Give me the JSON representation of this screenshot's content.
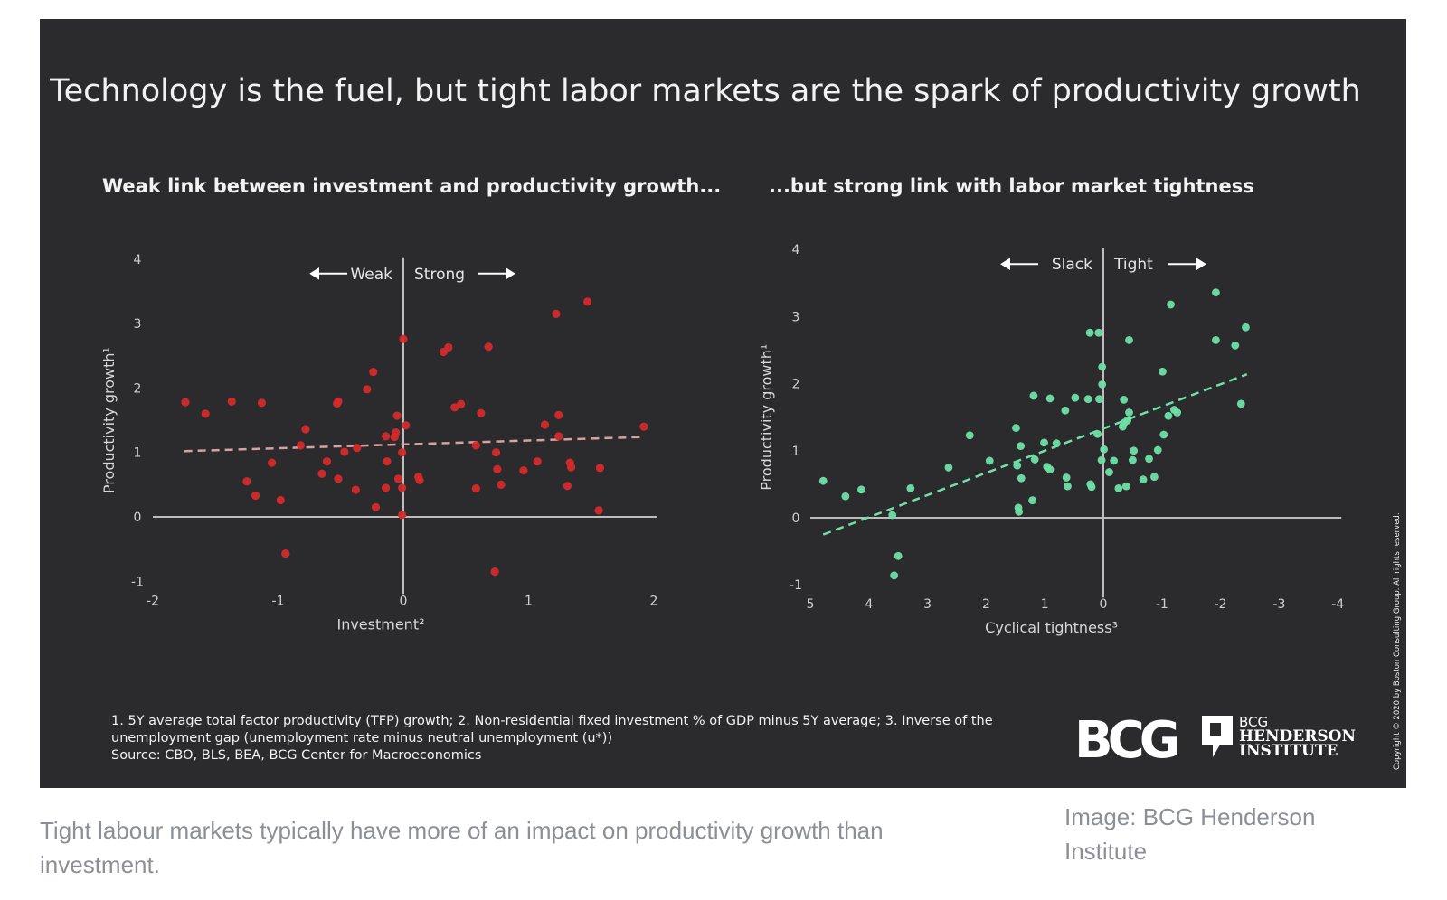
{
  "title": "Technology is the fuel, but tight labor markets are the spark of productivity growth",
  "footnotes": [
    "1. 5Y average total factor productivity (TFP) growth; 2. Non-residential fixed investment % of GDP minus 5Y average; 3. Inverse of the",
    "unemployment gap (unemployment rate minus neutral unemployment (u*))",
    "Source: CBO, BLS, BEA, BCG Center for Macroeconomics"
  ],
  "logos": {
    "bcg": "BCG",
    "henderson": [
      "BCG",
      "HENDERSON",
      "INSTITUTE"
    ]
  },
  "copyright": "Copyright © 2020 by Boston Consulting Group. All rights reserved.",
  "caption": "Tight labour markets typically have more of an impact on productivity growth than investment.",
  "credit": "Image: BCG Henderson Institute",
  "colors": {
    "background": "#2b2a2c",
    "left_points": "#d42a2c",
    "right_points": "#6fe0a6",
    "axis": "#bdbdbd",
    "caption": "#8a8f98"
  },
  "chart_data": [
    {
      "type": "scatter",
      "title": "Weak link between investment and productivity growth...",
      "xlabel": "Investment²",
      "ylabel": "Productivity growth¹",
      "xlim": [
        -2,
        2
      ],
      "ylim": [
        -1,
        4
      ],
      "xticks": [
        "-2",
        "-1",
        "0",
        "1",
        "2"
      ],
      "yticks": [
        "-1",
        "0",
        "1",
        "2",
        "3",
        "4"
      ],
      "annotation_left": "Weak",
      "annotation_right": "Strong",
      "grid": false,
      "trendline": [
        [
          -1.75,
          1.02
        ],
        [
          1.92,
          1.24
        ]
      ],
      "points": [
        [
          -1.74,
          1.78
        ],
        [
          -1.58,
          1.6
        ],
        [
          -1.37,
          1.79
        ],
        [
          -1.13,
          1.77
        ],
        [
          -0.52,
          1.79
        ],
        [
          -0.53,
          1.76
        ],
        [
          -0.29,
          1.98
        ],
        [
          -0.24,
          2.25
        ],
        [
          0,
          2.76
        ],
        [
          0.32,
          2.56
        ],
        [
          0.36,
          2.63
        ],
        [
          0.68,
          2.64
        ],
        [
          1.22,
          3.15
        ],
        [
          1.47,
          3.34
        ],
        [
          0.41,
          1.7
        ],
        [
          0.46,
          1.75
        ],
        [
          0.62,
          1.61
        ],
        [
          1.24,
          1.58
        ],
        [
          1.13,
          1.43
        ],
        [
          1.92,
          1.4
        ],
        [
          1.24,
          1.25
        ],
        [
          -0.05,
          1.57
        ],
        [
          0.02,
          1.42
        ],
        [
          -0.06,
          1.31
        ],
        [
          -0.14,
          1.25
        ],
        [
          -0.07,
          1.24
        ],
        [
          -0.78,
          1.36
        ],
        [
          -0.82,
          1.11
        ],
        [
          -0.47,
          1.01
        ],
        [
          -0.37,
          1.07
        ],
        [
          -0.01,
          1.0
        ],
        [
          0.58,
          1.11
        ],
        [
          0.74,
          1.0
        ],
        [
          -1.05,
          0.84
        ],
        [
          -0.61,
          0.86
        ],
        [
          -0.13,
          0.86
        ],
        [
          0.75,
          0.74
        ],
        [
          0.96,
          0.72
        ],
        [
          1.07,
          0.86
        ],
        [
          1.33,
          0.84
        ],
        [
          1.34,
          0.77
        ],
        [
          1.57,
          0.76
        ],
        [
          -1.25,
          0.55
        ],
        [
          -0.65,
          0.67
        ],
        [
          -0.52,
          0.59
        ],
        [
          -1.18,
          0.33
        ],
        [
          -0.98,
          0.26
        ],
        [
          -0.38,
          0.42
        ],
        [
          -0.14,
          0.45
        ],
        [
          -0.04,
          0.59
        ],
        [
          -0.01,
          0.45
        ],
        [
          0.12,
          0.62
        ],
        [
          0.13,
          0.57
        ],
        [
          0.58,
          0.44
        ],
        [
          0.78,
          0.5
        ],
        [
          1.31,
          0.48
        ],
        [
          -0.22,
          0.15
        ],
        [
          -0.01,
          0.03
        ],
        [
          1.56,
          0.1
        ],
        [
          -0.94,
          -0.57
        ],
        [
          0.73,
          -0.85
        ]
      ]
    },
    {
      "type": "scatter",
      "title": "...but strong link with labor market tightness",
      "xlabel": "Cyclical tightness³",
      "ylabel": "Productivity growth¹",
      "xlim": [
        5,
        -4
      ],
      "ylim": [
        -1,
        4
      ],
      "xticks": [
        "5",
        "4",
        "3",
        "2",
        "1",
        "0",
        "-1",
        "-2",
        "-3",
        "-4"
      ],
      "yticks": [
        "-1",
        "0",
        "1",
        "2",
        "3",
        "4"
      ],
      "annotation_left": "Slack",
      "annotation_right": "Tight",
      "grid": false,
      "trendline": [
        [
          4.78,
          -0.25
        ],
        [
          -2.45,
          2.14
        ]
      ],
      "points": [
        [
          4.78,
          0.55
        ],
        [
          4.4,
          0.32
        ],
        [
          4.13,
          0.42
        ],
        [
          3.29,
          0.44
        ],
        [
          3.6,
          0.04
        ],
        [
          3.5,
          -0.57
        ],
        [
          3.57,
          -0.86
        ],
        [
          2.64,
          0.75
        ],
        [
          2.28,
          1.23
        ],
        [
          1.94,
          0.85
        ],
        [
          1.49,
          1.34
        ],
        [
          1.41,
          1.07
        ],
        [
          1.47,
          0.78
        ],
        [
          1.4,
          0.59
        ],
        [
          1.45,
          0.15
        ],
        [
          1.44,
          0.09
        ],
        [
          1.21,
          0.26
        ],
        [
          1.19,
          1.82
        ],
        [
          0.91,
          1.78
        ],
        [
          1.17,
          0.87
        ],
        [
          1.01,
          1.12
        ],
        [
          0.8,
          1.11
        ],
        [
          0.96,
          0.76
        ],
        [
          0.91,
          0.72
        ],
        [
          0.65,
          1.6
        ],
        [
          0.63,
          0.6
        ],
        [
          0.61,
          0.47
        ],
        [
          0.48,
          1.79
        ],
        [
          0.26,
          1.77
        ],
        [
          0.23,
          2.76
        ],
        [
          0.08,
          2.76
        ],
        [
          0.07,
          1.77
        ],
        [
          0.1,
          1.25
        ],
        [
          0.22,
          0.5
        ],
        [
          0.2,
          0.46
        ],
        [
          0.02,
          2.25
        ],
        [
          0.02,
          1.99
        ],
        [
          -0.01,
          1.02
        ],
        [
          0.03,
          0.86
        ],
        [
          -0.1,
          0.68
        ],
        [
          -0.18,
          0.85
        ],
        [
          -0.26,
          0.44
        ],
        [
          -0.39,
          0.47
        ],
        [
          -0.35,
          1.76
        ],
        [
          -0.44,
          2.65
        ],
        [
          -0.36,
          1.42
        ],
        [
          -0.33,
          1.36
        ],
        [
          -0.41,
          1.45
        ],
        [
          -0.44,
          1.57
        ],
        [
          -0.52,
          1.0
        ],
        [
          -0.5,
          0.86
        ],
        [
          -0.68,
          0.57
        ],
        [
          -0.78,
          0.88
        ],
        [
          -0.87,
          0.61
        ],
        [
          -0.93,
          1.01
        ],
        [
          -1.03,
          1.24
        ],
        [
          -1.01,
          2.18
        ],
        [
          -1.11,
          1.52
        ],
        [
          -1.15,
          3.18
        ],
        [
          -1.21,
          1.61
        ],
        [
          -1.26,
          1.57
        ],
        [
          -1.92,
          3.36
        ],
        [
          -1.92,
          2.65
        ],
        [
          -2.25,
          2.57
        ],
        [
          -2.35,
          1.7
        ],
        [
          -2.43,
          2.84
        ]
      ]
    }
  ]
}
